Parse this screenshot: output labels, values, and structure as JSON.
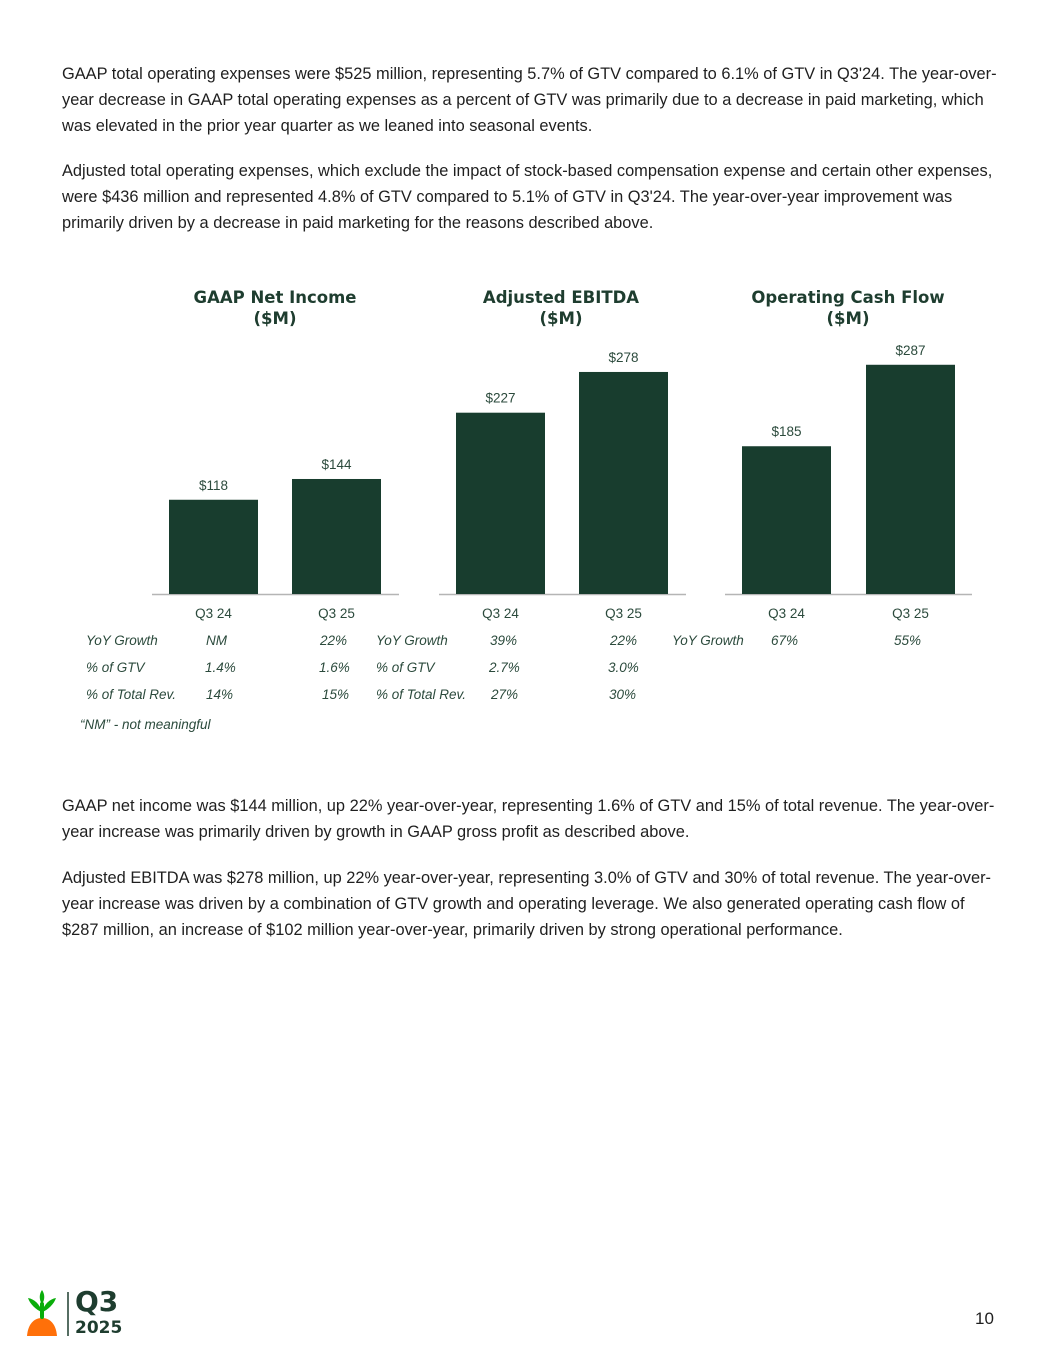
{
  "paragraphs": {
    "p1": "GAAP total operating expenses were $525 million, representing 5.7% of GTV compared to 6.1% of GTV in Q3'24. The year-over-year decrease in GAAP total operating expenses as a percent of GTV was primarily due to a decrease in paid marketing, which was elevated in the prior year quarter as we leaned into seasonal events.",
    "p2": "Adjusted total operating expenses, which exclude the impact of stock-based compensation expense and certain other expenses, were $436 million and represented 4.8% of GTV compared to 5.1% of GTV in Q3'24. The year-over-year improvement was primarily driven by a decrease in paid marketing for the reasons described above.",
    "p3": "GAAP net income was $144 million, up 22% year-over-year, representing 1.6% of GTV and 15% of total revenue. The year-over-year increase was primarily driven by growth in GAAP gross profit as described above.",
    "p4": "Adjusted EBITDA was $278 million, up 22% year-over-year, representing 3.0% of GTV and 30% of total revenue. The year-over-year increase was driven by a combination of GTV growth and operating leverage. We also generated operating cash flow of $287 million, an increase of $102 million year-over-year, primarily driven by strong operational performance."
  },
  "chart_data": [
    {
      "type": "bar",
      "title": "GAAP Net Income",
      "subtitle": "($M)",
      "categories": [
        "Q3 24",
        "Q3 25"
      ],
      "values": [
        118,
        144
      ],
      "value_labels": [
        "$118",
        "$144"
      ],
      "color": "#183d2e",
      "metrics": [
        {
          "label": "YoY Growth",
          "values": [
            "NM",
            "22%"
          ]
        },
        {
          "label": "% of GTV",
          "values": [
            "1.4%",
            "1.6%"
          ]
        },
        {
          "label": "% of Total Rev.",
          "values": [
            "14%",
            "15%"
          ]
        }
      ]
    },
    {
      "type": "bar",
      "title": "Adjusted EBITDA",
      "subtitle": "($M)",
      "categories": [
        "Q3 24",
        "Q3 25"
      ],
      "values": [
        227,
        278
      ],
      "value_labels": [
        "$227",
        "$278"
      ],
      "color": "#183d2e",
      "metrics": [
        {
          "label": "YoY Growth",
          "values": [
            "39%",
            "22%"
          ]
        },
        {
          "label": "% of GTV",
          "values": [
            "2.7%",
            "3.0%"
          ]
        },
        {
          "label": "% of Total Rev.",
          "values": [
            "27%",
            "30%"
          ]
        }
      ]
    },
    {
      "type": "bar",
      "title": "Operating Cash Flow",
      "subtitle": "($M)",
      "categories": [
        "Q3 24",
        "Q3 25"
      ],
      "values": [
        185,
        287
      ],
      "value_labels": [
        "$185",
        "$287"
      ],
      "color": "#183d2e",
      "metrics": [
        {
          "label": "YoY Growth",
          "values": [
            "67%",
            "55%"
          ]
        }
      ]
    }
  ],
  "footnote": "“NM” - not meaningful",
  "footer": {
    "logo_quarter": "Q3",
    "logo_year": "2025",
    "page_number": "10"
  },
  "colors": {
    "bar": "#183d2e",
    "title": "#1e3d2f",
    "axis": "#b5b5b5",
    "logo_leaf": "#0aad0a",
    "logo_carrot": "#ff7009"
  }
}
